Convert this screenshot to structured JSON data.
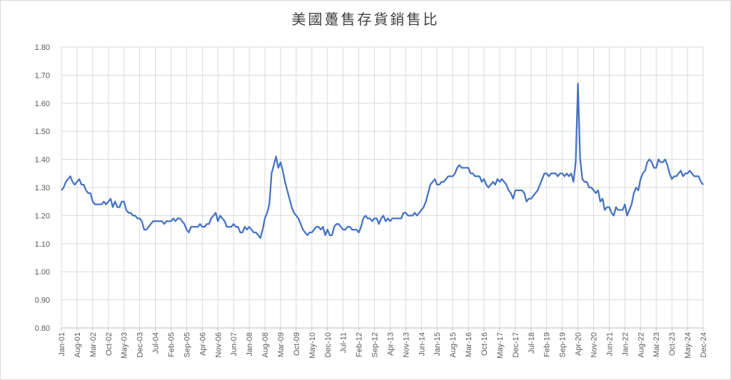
{
  "chart_data": {
    "type": "line",
    "title": "美國躉售存貨銷售比",
    "categories": [
      "Jan-01",
      null,
      null,
      null,
      null,
      null,
      null,
      "Aug-01",
      null,
      null,
      null,
      null,
      null,
      null,
      "Mar-02",
      null,
      null,
      null,
      null,
      null,
      null,
      "Oct-02",
      null,
      null,
      null,
      null,
      null,
      null,
      "May-03",
      null,
      null,
      null,
      null,
      null,
      null,
      "Dec-03",
      null,
      null,
      null,
      null,
      null,
      null,
      "Jul-04",
      null,
      null,
      null,
      null,
      null,
      null,
      "Feb-05",
      null,
      null,
      null,
      null,
      null,
      null,
      "Sep-05",
      null,
      null,
      null,
      null,
      null,
      null,
      "Apr-06",
      null,
      null,
      null,
      null,
      null,
      null,
      "Nov-06",
      null,
      null,
      null,
      null,
      null,
      null,
      "Jun-07",
      null,
      null,
      null,
      null,
      null,
      null,
      "Jan-08",
      null,
      null,
      null,
      null,
      null,
      null,
      "Aug-08",
      null,
      null,
      null,
      null,
      null,
      null,
      "Mar-09",
      null,
      null,
      null,
      null,
      null,
      null,
      "Oct-09",
      null,
      null,
      null,
      null,
      null,
      null,
      "May-10",
      null,
      null,
      null,
      null,
      null,
      null,
      "Dec-10",
      null,
      null,
      null,
      null,
      null,
      null,
      "Jul-11",
      null,
      null,
      null,
      null,
      null,
      null,
      "Feb-12",
      null,
      null,
      null,
      null,
      null,
      null,
      "Sep-12",
      null,
      null,
      null,
      null,
      null,
      null,
      "Apr-13",
      null,
      null,
      null,
      null,
      null,
      null,
      "Nov-13",
      null,
      null,
      null,
      null,
      null,
      null,
      "Jun-14",
      null,
      null,
      null,
      null,
      null,
      null,
      "Jan-15",
      null,
      null,
      null,
      null,
      null,
      null,
      "Aug-15",
      null,
      null,
      null,
      null,
      null,
      null,
      "Mar-16",
      null,
      null,
      null,
      null,
      null,
      null,
      "Oct-16",
      null,
      null,
      null,
      null,
      null,
      null,
      "May-17",
      null,
      null,
      null,
      null,
      null,
      null,
      "Dec-17",
      null,
      null,
      null,
      null,
      null,
      null,
      "Jul-18",
      null,
      null,
      null,
      null,
      null,
      null,
      "Feb-19",
      null,
      null,
      null,
      null,
      null,
      null,
      "Sep-19",
      null,
      null,
      null,
      null,
      null,
      null,
      "Apr-20",
      null,
      null,
      null,
      null,
      null,
      null,
      "Nov-20",
      null,
      null,
      null,
      null,
      null,
      null,
      "Jun-21",
      null,
      null,
      null,
      null,
      null,
      null,
      "Jan-22",
      null,
      null,
      null,
      null,
      null,
      null,
      "Aug-22",
      null,
      null,
      null,
      null,
      null,
      null,
      "Mar-23",
      null,
      null,
      null,
      null,
      null,
      null,
      "Oct-23",
      null,
      null,
      null,
      null,
      null,
      null,
      "May-24",
      null,
      null,
      null,
      null,
      null,
      null,
      "Dec-24"
    ],
    "series": [
      {
        "name": "美國躉售存貨銷售比",
        "color": "#4472c4",
        "values": [
          1.29,
          1.3,
          1.32,
          1.33,
          1.34,
          1.32,
          1.31,
          1.32,
          1.33,
          1.31,
          1.31,
          1.29,
          1.28,
          1.28,
          1.25,
          1.24,
          1.24,
          1.24,
          1.24,
          1.25,
          1.24,
          1.25,
          1.26,
          1.23,
          1.25,
          1.23,
          1.23,
          1.25,
          1.25,
          1.22,
          1.21,
          1.21,
          1.2,
          1.2,
          1.19,
          1.19,
          1.18,
          1.15,
          1.15,
          1.16,
          1.17,
          1.18,
          1.18,
          1.18,
          1.18,
          1.18,
          1.17,
          1.18,
          1.18,
          1.18,
          1.19,
          1.18,
          1.19,
          1.19,
          1.18,
          1.17,
          1.15,
          1.14,
          1.16,
          1.16,
          1.16,
          1.16,
          1.17,
          1.16,
          1.16,
          1.17,
          1.17,
          1.19,
          1.2,
          1.21,
          1.18,
          1.2,
          1.19,
          1.18,
          1.16,
          1.16,
          1.16,
          1.17,
          1.16,
          1.16,
          1.14,
          1.14,
          1.16,
          1.15,
          1.16,
          1.15,
          1.14,
          1.14,
          1.13,
          1.12,
          1.15,
          1.19,
          1.21,
          1.24,
          1.35,
          1.38,
          1.41,
          1.37,
          1.39,
          1.36,
          1.32,
          1.29,
          1.26,
          1.23,
          1.21,
          1.2,
          1.19,
          1.17,
          1.15,
          1.14,
          1.13,
          1.14,
          1.14,
          1.15,
          1.16,
          1.16,
          1.15,
          1.16,
          1.13,
          1.15,
          1.13,
          1.13,
          1.16,
          1.17,
          1.17,
          1.16,
          1.15,
          1.15,
          1.16,
          1.16,
          1.15,
          1.15,
          1.15,
          1.14,
          1.16,
          1.19,
          1.2,
          1.19,
          1.19,
          1.18,
          1.19,
          1.19,
          1.17,
          1.19,
          1.2,
          1.18,
          1.19,
          1.18,
          1.19,
          1.19,
          1.19,
          1.19,
          1.19,
          1.21,
          1.21,
          1.2,
          1.2,
          1.2,
          1.21,
          1.2,
          1.21,
          1.22,
          1.23,
          1.25,
          1.28,
          1.31,
          1.32,
          1.33,
          1.31,
          1.31,
          1.32,
          1.32,
          1.33,
          1.34,
          1.34,
          1.34,
          1.35,
          1.37,
          1.38,
          1.37,
          1.37,
          1.37,
          1.37,
          1.35,
          1.35,
          1.34,
          1.34,
          1.34,
          1.32,
          1.33,
          1.31,
          1.3,
          1.31,
          1.32,
          1.31,
          1.33,
          1.32,
          1.33,
          1.32,
          1.31,
          1.29,
          1.28,
          1.26,
          1.29,
          1.29,
          1.29,
          1.29,
          1.28,
          1.25,
          1.26,
          1.26,
          1.27,
          1.28,
          1.29,
          1.31,
          1.33,
          1.35,
          1.35,
          1.34,
          1.35,
          1.35,
          1.35,
          1.34,
          1.35,
          1.35,
          1.34,
          1.35,
          1.34,
          1.35,
          1.32,
          1.39,
          1.67,
          1.4,
          1.33,
          1.32,
          1.32,
          1.3,
          1.3,
          1.29,
          1.28,
          1.29,
          1.25,
          1.26,
          1.22,
          1.23,
          1.23,
          1.21,
          1.2,
          1.23,
          1.22,
          1.22,
          1.22,
          1.24,
          1.2,
          1.22,
          1.24,
          1.28,
          1.3,
          1.29,
          1.33,
          1.35,
          1.36,
          1.39,
          1.4,
          1.39,
          1.37,
          1.37,
          1.4,
          1.39,
          1.39,
          1.4,
          1.38,
          1.35,
          1.33,
          1.34,
          1.34,
          1.35,
          1.36,
          1.34,
          1.35,
          1.35,
          1.36,
          1.35,
          1.34,
          1.34,
          1.34,
          1.32,
          1.31
        ]
      }
    ],
    "ylim": [
      0.8,
      1.8
    ],
    "yticks": [
      {
        "value": 0.8,
        "label": "0.80"
      },
      {
        "value": 0.9,
        "label": "0.90"
      },
      {
        "value": 1.0,
        "label": "1.00"
      },
      {
        "value": 1.1,
        "label": "1.10"
      },
      {
        "value": 1.2,
        "label": "1.20"
      },
      {
        "value": 1.3,
        "label": "1.30"
      },
      {
        "value": 1.4,
        "label": "1.40"
      },
      {
        "value": 1.5,
        "label": "1.50"
      },
      {
        "value": 1.6,
        "label": "1.60"
      },
      {
        "value": 1.7,
        "label": "1.70"
      },
      {
        "value": 1.8,
        "label": "1.80"
      }
    ],
    "grid": true
  }
}
